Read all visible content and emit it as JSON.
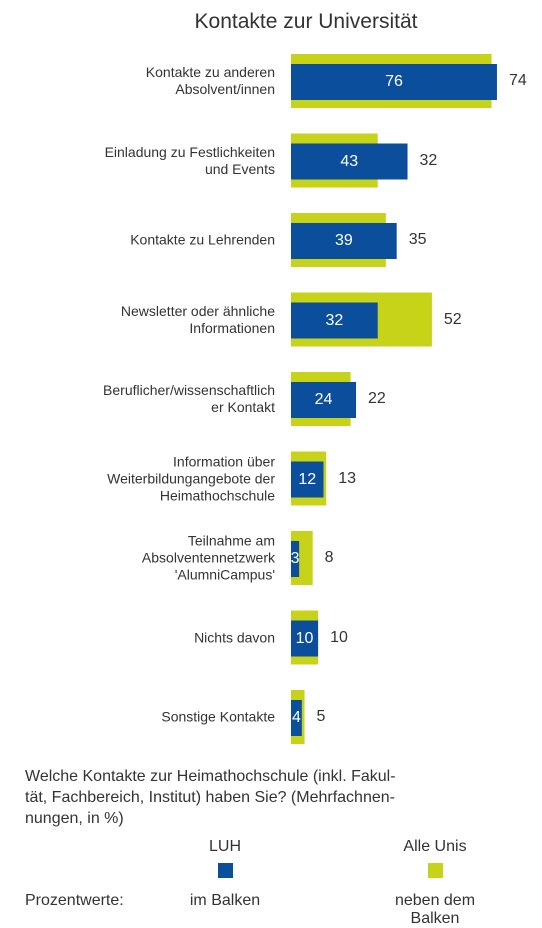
{
  "chart_data": {
    "type": "bar",
    "title": "Kontakte zur Universität",
    "categories": [
      "Kontakte zu anderen\nAbsolvent/innen",
      "Einladung zu Festlichkeiten\nund Events",
      "Kontakte zu Lehrenden",
      "Newsletter oder ähnliche\nInformationen",
      "Beruflicher/wissenschaftlich\ner Kontakt",
      "Information über\nWeiterbildungangebote der\nHeimathochschule",
      "Teilnahme am\nAbsolventennetzwerk\n'AlumniCampus'",
      "Nichts davon",
      "Sonstige Kontakte"
    ],
    "series": [
      {
        "name": "LUH",
        "color": "#0b4f9c",
        "values": [
          76,
          43,
          39,
          32,
          24,
          12,
          3,
          10,
          4
        ]
      },
      {
        "name": "Alle Unis",
        "color": "#c6d319",
        "values": [
          74,
          32,
          35,
          52,
          22,
          13,
          8,
          10,
          5
        ]
      }
    ],
    "note": "Welche Kontakte zur Heimathochschule (inkl. Fakul-\ntät, Fachbereich, Institut) haben Sie? (Mehrfachnen-\nnungen, in %)",
    "legend_caption": "Prozentwerte:",
    "legend_positions": [
      "im Balken",
      "neben dem Balken"
    ]
  }
}
